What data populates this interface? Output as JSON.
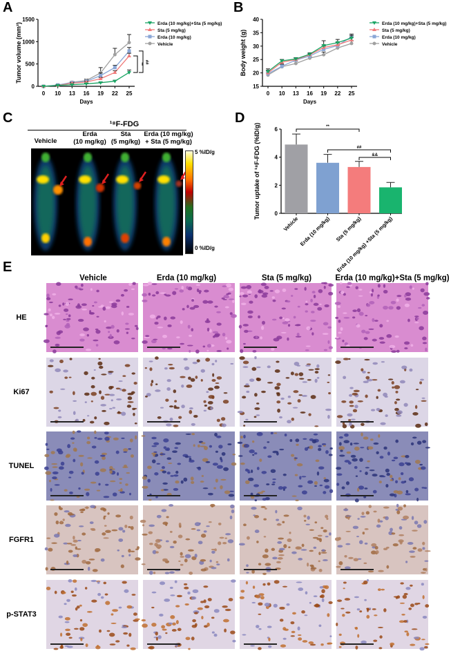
{
  "panels": {
    "a": "A",
    "b": "B",
    "c": "C",
    "d": "D",
    "e": "E"
  },
  "chart_data": [
    {
      "type": "line",
      "panel": "A",
      "xlabel": "Days",
      "ylabel": "Tumor volume (mm³)",
      "x": [
        0,
        10,
        13,
        16,
        19,
        22,
        25
      ],
      "ylim": [
        0,
        1500
      ],
      "yticks": [
        0,
        500,
        1000,
        1500
      ],
      "series": [
        {
          "name": "Erda (10 mg/kg)+Sta (5 mg/kg)",
          "color": "#1aa564",
          "marker": "triangle-down",
          "values": [
            0,
            20,
            35,
            55,
            80,
            115,
            310
          ],
          "err": [
            0,
            8,
            10,
            12,
            15,
            20,
            55
          ]
        },
        {
          "name": "Sta (5 mg/kg)",
          "color": "#f07a7a",
          "marker": "triangle-up",
          "values": [
            0,
            20,
            70,
            95,
            170,
            310,
            680
          ],
          "err": [
            0,
            8,
            12,
            20,
            30,
            40,
            60
          ]
        },
        {
          "name": "Erda (10 mg/kg)",
          "color": "#8aa6d6",
          "marker": "square",
          "values": [
            0,
            30,
            80,
            110,
            240,
            420,
            790
          ],
          "err": [
            0,
            10,
            15,
            25,
            60,
            50,
            80
          ]
        },
        {
          "name": "Vehicle",
          "color": "#a0a0a0",
          "marker": "circle",
          "values": [
            0,
            25,
            90,
            130,
            300,
            710,
            980
          ],
          "err": [
            0,
            10,
            20,
            30,
            120,
            140,
            180
          ]
        }
      ],
      "annotations": [
        "**",
        "##"
      ]
    },
    {
      "type": "line",
      "panel": "B",
      "xlabel": "Days",
      "ylabel": "Body weight (g)",
      "x": [
        0,
        10,
        13,
        16,
        19,
        22,
        25
      ],
      "ylim": [
        15,
        40
      ],
      "yticks": [
        15,
        20,
        25,
        30,
        35,
        40
      ],
      "series": [
        {
          "name": "Erda (10 mg/kg)+Sta (5 mg/kg)",
          "color": "#1aa564",
          "marker": "triangle-down",
          "values": [
            20.5,
            24.5,
            25.2,
            27,
            30.2,
            31.3,
            33
          ],
          "err": [
            1,
            0.5,
            0.5,
            0.5,
            1.8,
            1.2,
            1
          ]
        },
        {
          "name": "Sta (5 mg/kg)",
          "color": "#f07a7a",
          "marker": "triangle-up",
          "values": [
            20,
            24,
            25,
            26.8,
            29.5,
            30.5,
            32.3
          ],
          "err": [
            1,
            1,
            0.6,
            0.5,
            1,
            1,
            1
          ]
        },
        {
          "name": "Erda (10 mg/kg)",
          "color": "#8aa6d6",
          "marker": "square",
          "values": [
            19.7,
            22.5,
            24.8,
            26.3,
            28.8,
            30.2,
            33.5
          ],
          "err": [
            1,
            0.8,
            0.8,
            0.8,
            1.2,
            1,
            1
          ]
        },
        {
          "name": "Vehicle",
          "color": "#a0a0a0",
          "marker": "circle",
          "values": [
            19.2,
            22.3,
            23.5,
            25.5,
            26.8,
            29.3,
            31
          ],
          "err": [
            0.8,
            0.8,
            0.8,
            0.5,
            1,
            1,
            1
          ]
        }
      ]
    },
    {
      "type": "bar",
      "panel": "D",
      "ylabel": "Tumor uptake of ¹⁸F-FDG (%ID/g)",
      "ylim": [
        0,
        6
      ],
      "yticks": [
        0,
        2,
        4,
        6
      ],
      "categories": [
        "Vehicle",
        "Erda (10 mg/kg)",
        "Sta (5 mg/kg)",
        "Erda (10 mg/kg) +Sta (5 mg/kg)"
      ],
      "values": [
        4.9,
        3.6,
        3.3,
        1.85
      ],
      "err": [
        0.75,
        0.6,
        0.4,
        0.35
      ],
      "colors": [
        "#a0a0a5",
        "#7fa1d1",
        "#f47c7c",
        "#19b46e"
      ],
      "annotations": [
        "**",
        "##",
        "&&"
      ]
    }
  ],
  "c": {
    "tracer": "¹⁸F-FDG",
    "columns": [
      "Vehicle",
      "Erda\n(10 mg/kg)",
      "Sta\n(5 mg/kg)",
      "Erda (10 mg/kg)\n+ Sta (5 mg/kg)"
    ],
    "scale_max": "5 %ID/g",
    "scale_min": "0 %ID/g"
  },
  "e": {
    "columns": [
      "Vehicle",
      "Erda (10 mg/kg)",
      "Sta (5 mg/kg)",
      "Erda (10 mg/kg)+Sta (5 mg/kg)"
    ],
    "rows": [
      "HE",
      "Ki67",
      "TUNEL",
      "FGFR1",
      "p-STAT3"
    ]
  }
}
